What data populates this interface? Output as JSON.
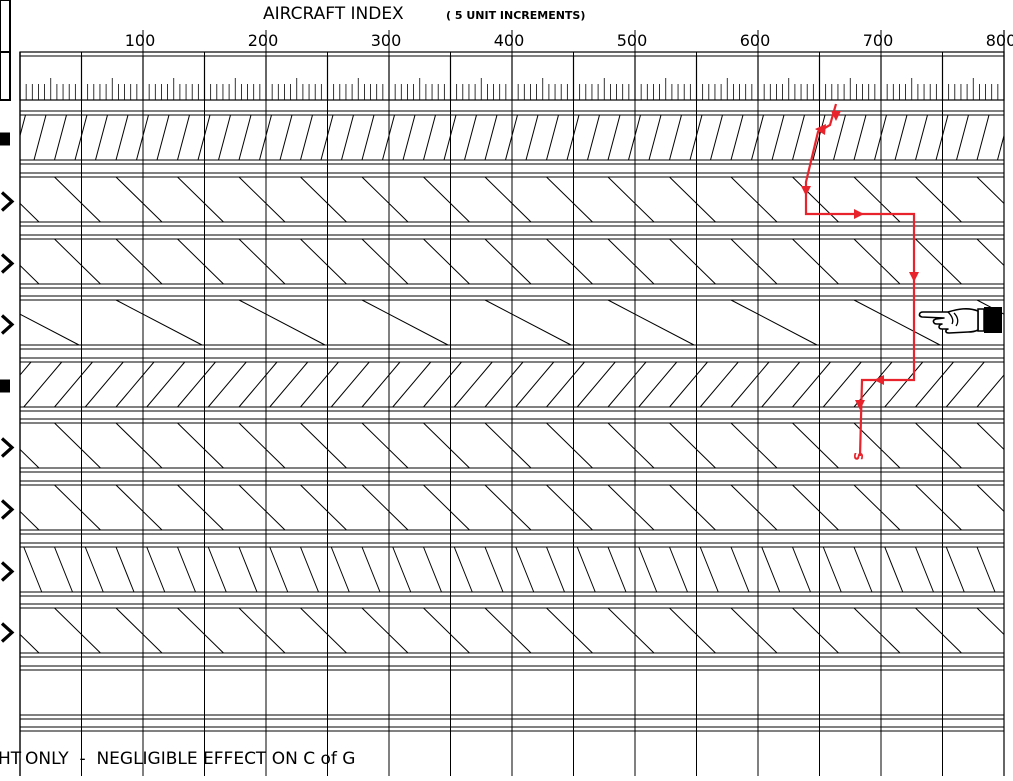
{
  "title": {
    "main": "AIRCRAFT INDEX",
    "note": "( 5 UNIT INCREMENTS)"
  },
  "scale": {
    "min": 0,
    "max": 800,
    "major_step": 50,
    "minor_step": 5,
    "tick_labels": [
      "100",
      "200",
      "300",
      "400",
      "500",
      "600",
      "700",
      "800"
    ]
  },
  "bands": [
    {
      "id": "band-1",
      "row_marker": "square",
      "hatch": "right-lean-steep"
    },
    {
      "id": "band-2",
      "row_marker": "chevron",
      "hatch": "left-lean"
    },
    {
      "id": "band-3",
      "row_marker": "chevron",
      "hatch": "left-lean"
    },
    {
      "id": "band-4",
      "row_marker": "chevron",
      "hatch": "left-lean-shallow"
    },
    {
      "id": "band-5",
      "row_marker": "square",
      "hatch": "right-lean"
    },
    {
      "id": "band-6",
      "row_marker": "chevron",
      "hatch": "left-lean"
    },
    {
      "id": "band-7",
      "row_marker": "chevron",
      "hatch": "left-lean"
    },
    {
      "id": "band-8",
      "row_marker": "chevron",
      "hatch": "left-lean-steep"
    },
    {
      "id": "band-9",
      "row_marker": "chevron",
      "hatch": "left-lean"
    },
    {
      "id": "band-10",
      "row_marker": "",
      "hatch": "none"
    }
  ],
  "footer": {
    "prefix": "HT",
    "text": "ONLY  -  NEGLIGIBLE EFFECT ON C of G"
  },
  "example_path": {
    "color": "#e8232b",
    "end_label": "S"
  },
  "pointer_icon": "pointing-hand-icon"
}
